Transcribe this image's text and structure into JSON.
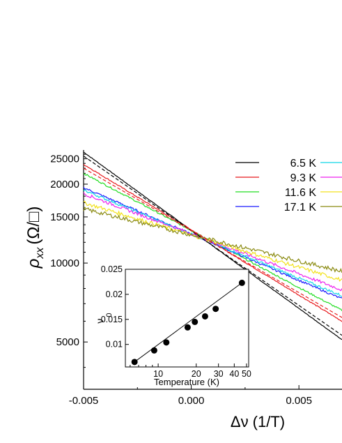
{
  "chart_data": [
    {
      "type": "line",
      "xlabel": "Δν (1/T)",
      "ylabel": "ρ",
      "ylabel_sub": "xx",
      "ylabel_unit": "(Ω/□)",
      "xlim": [
        -0.005,
        0.007
      ],
      "ylim": [
        3300,
        27000
      ],
      "yscale": "log",
      "x_ticks": [
        -0.005,
        0.0,
        0.005
      ],
      "x_tick_labels": [
        "-0.005",
        "0.000",
        "0.005"
      ],
      "y_ticks": [
        5000,
        10000,
        15000,
        20000,
        25000
      ],
      "y_tick_labels": [
        "5000",
        "10000",
        "15000",
        "20000",
        "25000"
      ],
      "grid": false,
      "legend_position": "top-right",
      "series": [
        {
          "name": "6.5 K",
          "color": "#000000",
          "x": [
            -0.005,
            0.007
          ],
          "y": [
            26500,
            5100
          ]
        },
        {
          "name": "9.3 K",
          "color": "#e8191c",
          "x": [
            -0.005,
            0.007
          ],
          "y": [
            23800,
            6000
          ]
        },
        {
          "name": "11.6 K",
          "color": "#22dd22",
          "x": [
            -0.005,
            0.007
          ],
          "y": [
            22000,
            6600
          ]
        },
        {
          "name": "17.1 K",
          "color": "#1a1aff",
          "x": [
            -0.005,
            0.007
          ],
          "y": [
            19400,
            7300
          ]
        },
        {
          "name": "",
          "color": "#11d8e8",
          "x": [
            -0.005,
            0.007
          ],
          "y": [
            19000,
            7500
          ]
        },
        {
          "name": "",
          "color": "#ee22ee",
          "x": [
            -0.005,
            0.007
          ],
          "y": [
            18400,
            7900
          ]
        },
        {
          "name": "",
          "color": "#f2e21c",
          "x": [
            -0.005,
            0.007
          ],
          "y": [
            17000,
            8600
          ]
        },
        {
          "name": "",
          "color": "#8a8a10",
          "x": [
            -0.005,
            0.007
          ],
          "y": [
            16100,
            9300
          ]
        }
      ],
      "dashed_fits": [
        {
          "color": "#000000",
          "x": [
            -0.005,
            0.007
          ],
          "y": [
            25600,
            5300
          ]
        },
        {
          "color": "#e8191c",
          "x": [
            -0.005,
            0.007
          ],
          "y": [
            23000,
            6200
          ]
        }
      ]
    },
    {
      "type": "scatter",
      "xlabel": "Temperature (K)",
      "ylabel": "ν",
      "ylabel_sub": "0",
      "xscale": "log",
      "xlim": [
        5.5,
        52
      ],
      "ylim": [
        0.0055,
        0.025
      ],
      "x_ticks": [
        10,
        20,
        30,
        40,
        50
      ],
      "x_tick_labels": [
        "10",
        "20",
        "30",
        "40",
        "50"
      ],
      "y_ticks": [
        0.01,
        0.015,
        0.02,
        0.025
      ],
      "y_tick_labels": [
        "0.01",
        "0.015",
        "0.02",
        "0.025"
      ],
      "points": {
        "x": [
          6.5,
          9.3,
          11.6,
          17.1,
          19.5,
          23.5,
          28.5,
          46
        ],
        "y": [
          0.0065,
          0.0088,
          0.0104,
          0.0134,
          0.0145,
          0.0156,
          0.0171,
          0.0223
        ]
      },
      "fit_line": {
        "x": [
          6.5,
          46
        ],
        "y": [
          0.0065,
          0.0223
        ]
      }
    }
  ]
}
